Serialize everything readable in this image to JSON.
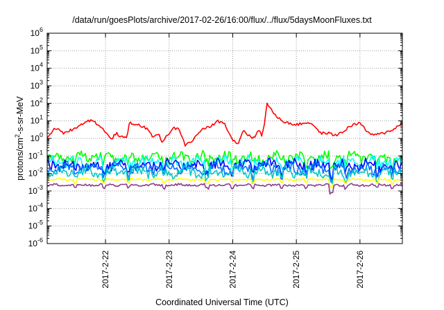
{
  "chart_data": {
    "type": "line",
    "title": "/data/run/goesPlots/archive/2017-02-26/16:00/flux/../flux/5daysMoonFluxes.txt",
    "xlabel": "Coordinated Universal Time (UTC)",
    "ylabel": {
      "prefix": "protons/cm",
      "sup": "2",
      "suffix": "-s-sr-MeV"
    },
    "y_scale": "log",
    "ylim": [
      1e-06,
      1000000.0
    ],
    "xlim": [
      "2017-02-21 02:00",
      "2017-02-26 16:00"
    ],
    "x_ticks": [
      "2017-2-22",
      "2017-2-23",
      "2017-2-24",
      "2017-2-25",
      "2017-2-26"
    ],
    "y_ticks": [
      {
        "base": "10",
        "exp": "6"
      },
      {
        "base": "10",
        "exp": "5"
      },
      {
        "base": "10",
        "exp": "4"
      },
      {
        "base": "10",
        "exp": "3"
      },
      {
        "base": "10",
        "exp": "2"
      },
      {
        "base": "10",
        "exp": "1"
      },
      {
        "base": "10",
        "exp": "0"
      },
      {
        "base": "10",
        "exp": "-1"
      },
      {
        "base": "10",
        "exp": "-2"
      },
      {
        "base": "10",
        "exp": "-3"
      },
      {
        "base": "10",
        "exp": "-4"
      },
      {
        "base": "10",
        "exp": "-5"
      },
      {
        "base": "10",
        "exp": "-6"
      }
    ],
    "grid": true,
    "series": [
      {
        "color": "#ff0000",
        "x": [
          "2017-02-21 02:00",
          "2017-02-21 05:00",
          "2017-02-21 08:00",
          "2017-02-21 12:00",
          "2017-02-21 16:00",
          "2017-02-21 19:00",
          "2017-02-21 21:00",
          "2017-02-22 00:00",
          "2017-02-22 02:00",
          "2017-02-22 04:00",
          "2017-02-22 06:00",
          "2017-02-22 08:00",
          "2017-02-22 09:00",
          "2017-02-22 12:00",
          "2017-02-22 14:00",
          "2017-02-22 16:00",
          "2017-02-22 18:00",
          "2017-02-22 20:00",
          "2017-02-22 21:00",
          "2017-02-23 00:00",
          "2017-02-23 02:00",
          "2017-02-23 04:00",
          "2017-02-23 06:00",
          "2017-02-23 09:00",
          "2017-02-23 12:00",
          "2017-02-23 16:00",
          "2017-02-23 18:00",
          "2017-02-23 21:00",
          "2017-02-24 00:00",
          "2017-02-24 02:00",
          "2017-02-24 04:00",
          "2017-02-24 06:00",
          "2017-02-24 08:00",
          "2017-02-24 09:00",
          "2017-02-24 10:00",
          "2017-02-24 11:00",
          "2017-02-24 12:00",
          "2017-02-24 13:00",
          "2017-02-24 16:00",
          "2017-02-24 20:00",
          "2017-02-25 00:00",
          "2017-02-25 04:00",
          "2017-02-25 06:00",
          "2017-02-25 09:00",
          "2017-02-25 12:00",
          "2017-02-25 15:00",
          "2017-02-25 18:00",
          "2017-02-25 20:00",
          "2017-02-26 00:00",
          "2017-02-26 02:00",
          "2017-02-26 05:00",
          "2017-02-26 09:00",
          "2017-02-26 12:00",
          "2017-02-26 16:00"
        ],
        "y": [
          1.0,
          4.0,
          2.0,
          3.5,
          8.0,
          12.0,
          6.0,
          2.5,
          0.8,
          2.0,
          1.2,
          1.0,
          8.0,
          6.0,
          5.0,
          3.0,
          1.2,
          2.0,
          0.6,
          2.0,
          4.0,
          3.0,
          0.4,
          0.8,
          3.0,
          5.0,
          10.0,
          7.0,
          0.8,
          0.5,
          3.0,
          1.5,
          1.0,
          2.0,
          3.0,
          1.5,
          8.0,
          100.0,
          20.0,
          8.0,
          6.0,
          8.0,
          7.0,
          2.0,
          2.0,
          1.5,
          2.5,
          5.0,
          8.0,
          3.0,
          1.5,
          2.0,
          3.0,
          7.0
        ],
        "noise": 0.15
      },
      {
        "color": "#00ff00",
        "base": 0.08,
        "noise": 0.28
      },
      {
        "color": "#00ffff",
        "base": 0.045,
        "noise": 0.28
      },
      {
        "color": "#0000ff",
        "base": 0.03,
        "noise": 0.28
      },
      {
        "color": "#0070ff",
        "base": 0.02,
        "noise": 0.28
      },
      {
        "color": "#00c8c8",
        "base": 0.012,
        "noise": 0.28
      },
      {
        "color": "#ffff00",
        "base": 0.0045,
        "noise": 0.05
      },
      {
        "color": "#8b3a8b",
        "base": 0.0022,
        "noise": 0.06
      }
    ]
  }
}
